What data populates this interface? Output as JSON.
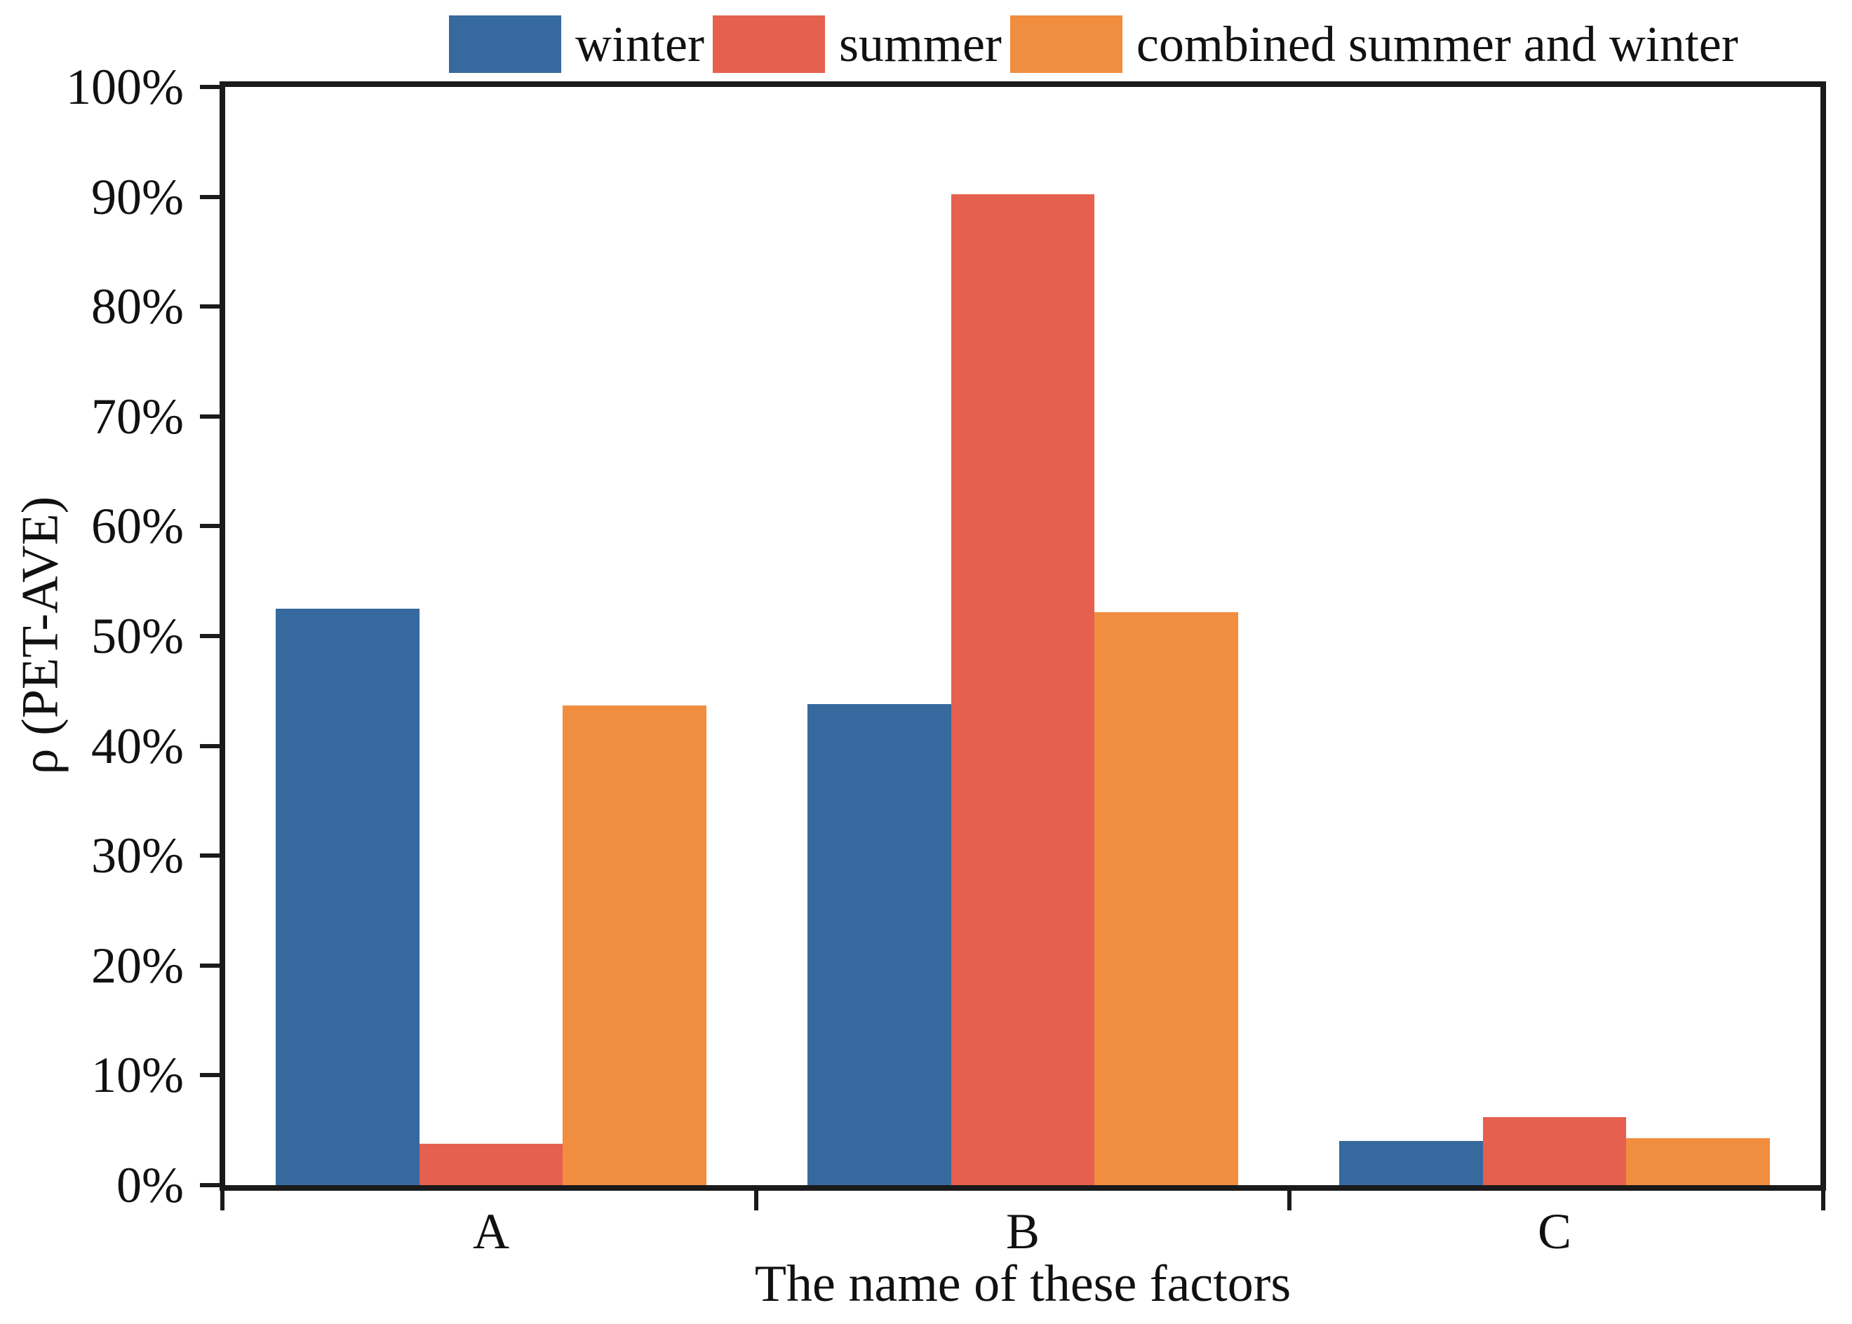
{
  "chart_data": {
    "type": "bar",
    "categories": [
      "A",
      "B",
      "C"
    ],
    "series": [
      {
        "name": "winter",
        "color": "#36699E",
        "values": [
          52.5,
          43.8,
          4.0
        ]
      },
      {
        "name": "summer",
        "color": "#E6604F",
        "values": [
          3.8,
          90.2,
          6.2
        ]
      },
      {
        "name": "combined summer and winter",
        "color": "#F08D3F",
        "values": [
          43.7,
          52.2,
          4.3
        ]
      }
    ],
    "xlabel": "The name of these factors",
    "ylabel": "ρ (PET-AVE)",
    "ylim": [
      0,
      100
    ],
    "ytick_labels": [
      "0%",
      "10%",
      "20%",
      "30%",
      "40%",
      "50%",
      "60%",
      "70%",
      "80%",
      "90%",
      "100%"
    ],
    "legend_position": "top",
    "grid": false,
    "unit": "percent"
  }
}
